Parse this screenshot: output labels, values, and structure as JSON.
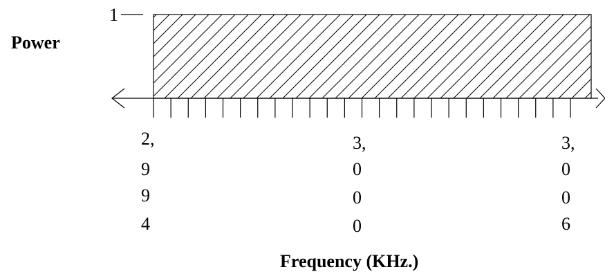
{
  "y_axis": {
    "label": "Power",
    "tick_label": "1"
  },
  "x_axis": {
    "label": "Frequency (KHz.)",
    "tick_labels": [
      [
        "2,",
        "9",
        "9",
        "4"
      ],
      [
        "3,",
        "0",
        "0",
        "0"
      ],
      [
        "3,",
        "0",
        "0",
        "6"
      ]
    ]
  },
  "band": {
    "start_khz": 2994,
    "end_khz": 3006,
    "power": 1,
    "fill": "diagonal-hatch"
  },
  "colors": {
    "ink": "#000000",
    "background": "#ffffff"
  }
}
